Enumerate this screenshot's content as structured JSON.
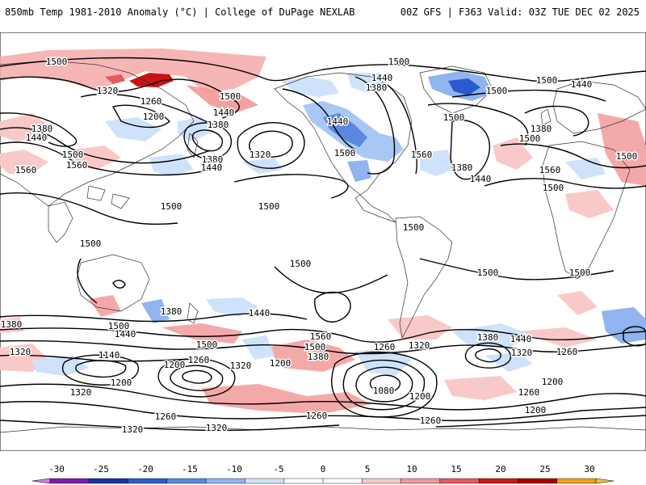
{
  "header": {
    "left_title": "850mb Temp 1981-2010 Anomaly (°C) | College of DuPage NEXLAB",
    "right_title": "00Z GFS | F363 Valid: 03Z TUE DEC 02 2025"
  },
  "map": {
    "contour_labels": [
      {
        "text": "1500",
        "pos": [
          70,
          77
        ]
      },
      {
        "text": "1320",
        "pos": [
          133,
          113
        ]
      },
      {
        "text": "1260",
        "pos": [
          187,
          126
        ]
      },
      {
        "text": "1200",
        "pos": [
          190,
          145
        ]
      },
      {
        "text": "1500",
        "pos": [
          285,
          120
        ]
      },
      {
        "text": "1440",
        "pos": [
          277,
          140
        ]
      },
      {
        "text": "1380",
        "pos": [
          270,
          155
        ]
      },
      {
        "text": "1380",
        "pos": [
          263,
          198
        ]
      },
      {
        "text": "1440",
        "pos": [
          262,
          208
        ]
      },
      {
        "text": "1320",
        "pos": [
          322,
          192
        ]
      },
      {
        "text": "1380",
        "pos": [
          52,
          160
        ]
      },
      {
        "text": "1440",
        "pos": [
          45,
          171
        ]
      },
      {
        "text": "1500",
        "pos": [
          90,
          192
        ]
      },
      {
        "text": "1560",
        "pos": [
          95,
          205
        ]
      },
      {
        "text": "1560",
        "pos": [
          32,
          211
        ]
      },
      {
        "text": "1500",
        "pos": [
          212,
          256
        ]
      },
      {
        "text": "1500",
        "pos": [
          333,
          256
        ]
      },
      {
        "text": "1500",
        "pos": [
          112,
          302
        ]
      },
      {
        "text": "1500",
        "pos": [
          372,
          327
        ]
      },
      {
        "text": "1500",
        "pos": [
          494,
          77
        ]
      },
      {
        "text": "1440",
        "pos": [
          473,
          97
        ]
      },
      {
        "text": "1380",
        "pos": [
          466,
          109
        ]
      },
      {
        "text": "1440",
        "pos": [
          418,
          151
        ]
      },
      {
        "text": "1500",
        "pos": [
          427,
          190
        ]
      },
      {
        "text": "1560",
        "pos": [
          522,
          192
        ]
      },
      {
        "text": "1380",
        "pos": [
          572,
          208
        ]
      },
      {
        "text": "1440",
        "pos": [
          595,
          222
        ]
      },
      {
        "text": "1500",
        "pos": [
          562,
          146
        ]
      },
      {
        "text": "1500",
        "pos": [
          615,
          113
        ]
      },
      {
        "text": "1500",
        "pos": [
          677,
          100
        ]
      },
      {
        "text": "1440",
        "pos": [
          720,
          105
        ]
      },
      {
        "text": "1380",
        "pos": [
          670,
          160
        ]
      },
      {
        "text": "1500",
        "pos": [
          656,
          172
        ]
      },
      {
        "text": "1560",
        "pos": [
          681,
          211
        ]
      },
      {
        "text": "1500",
        "pos": [
          685,
          233
        ]
      },
      {
        "text": "1500",
        "pos": [
          776,
          194
        ]
      },
      {
        "text": "1500",
        "pos": [
          512,
          282
        ]
      },
      {
        "text": "1500",
        "pos": [
          604,
          338
        ]
      },
      {
        "text": "1500",
        "pos": [
          718,
          338
        ]
      },
      {
        "text": "1380",
        "pos": [
          212,
          386
        ]
      },
      {
        "text": "1440",
        "pos": [
          321,
          388
        ]
      },
      {
        "text": "1500",
        "pos": [
          147,
          404
        ]
      },
      {
        "text": "1440",
        "pos": [
          155,
          414
        ]
      },
      {
        "text": "1380",
        "pos": [
          14,
          402
        ]
      },
      {
        "text": "1320",
        "pos": [
          25,
          436
        ]
      },
      {
        "text": "1140",
        "pos": [
          135,
          440
        ]
      },
      {
        "text": "1200",
        "pos": [
          216,
          452
        ]
      },
      {
        "text": "1260",
        "pos": [
          246,
          446
        ]
      },
      {
        "text": "1500",
        "pos": [
          256,
          427
        ]
      },
      {
        "text": "1320",
        "pos": [
          298,
          453
        ]
      },
      {
        "text": "1200",
        "pos": [
          347,
          450
        ]
      },
      {
        "text": "1560",
        "pos": [
          397,
          417
        ]
      },
      {
        "text": "1500",
        "pos": [
          390,
          430
        ]
      },
      {
        "text": "1380",
        "pos": [
          394,
          442
        ]
      },
      {
        "text": "1260",
        "pos": [
          476,
          430
        ]
      },
      {
        "text": "1320",
        "pos": [
          519,
          428
        ]
      },
      {
        "text": "1080",
        "pos": [
          475,
          484
        ]
      },
      {
        "text": "1200",
        "pos": [
          520,
          491
        ]
      },
      {
        "text": "1380",
        "pos": [
          604,
          418
        ]
      },
      {
        "text": "1440",
        "pos": [
          645,
          420
        ]
      },
      {
        "text": "1320",
        "pos": [
          646,
          437
        ]
      },
      {
        "text": "1260",
        "pos": [
          702,
          436
        ]
      },
      {
        "text": "1200",
        "pos": [
          684,
          473
        ]
      },
      {
        "text": "1260",
        "pos": [
          655,
          486
        ]
      },
      {
        "text": "1200",
        "pos": [
          663,
          508
        ]
      },
      {
        "text": "1200",
        "pos": [
          150,
          474
        ]
      },
      {
        "text": "1320",
        "pos": [
          100,
          486
        ]
      },
      {
        "text": "1260",
        "pos": [
          205,
          516
        ]
      },
      {
        "text": "1260",
        "pos": [
          392,
          515
        ]
      },
      {
        "text": "1260",
        "pos": [
          533,
          521
        ]
      },
      {
        "text": "1320",
        "pos": [
          164,
          532
        ]
      },
      {
        "text": "1320",
        "pos": [
          268,
          530
        ]
      }
    ]
  },
  "colorbar": {
    "ticks": [
      "-30",
      "-25",
      "-20",
      "-15",
      "-10",
      "-5",
      "0",
      "5",
      "10",
      "15",
      "20",
      "25",
      "30"
    ],
    "colors": [
      "#d080e0",
      "#7a1fb0",
      "#1533a8",
      "#2a5ad0",
      "#5a88e0",
      "#8fb4ef",
      "#cfe2fb",
      "#ffffff",
      "#ffffff",
      "#f9c9c9",
      "#f19898",
      "#e55a5a",
      "#c91a1a",
      "#a80000",
      "#f0a020",
      "#f5c040"
    ],
    "min": -30,
    "max": 30
  },
  "colors": {
    "warm_anomaly": "#f4a9a9",
    "cold_anomaly": "#a9c7f4"
  }
}
